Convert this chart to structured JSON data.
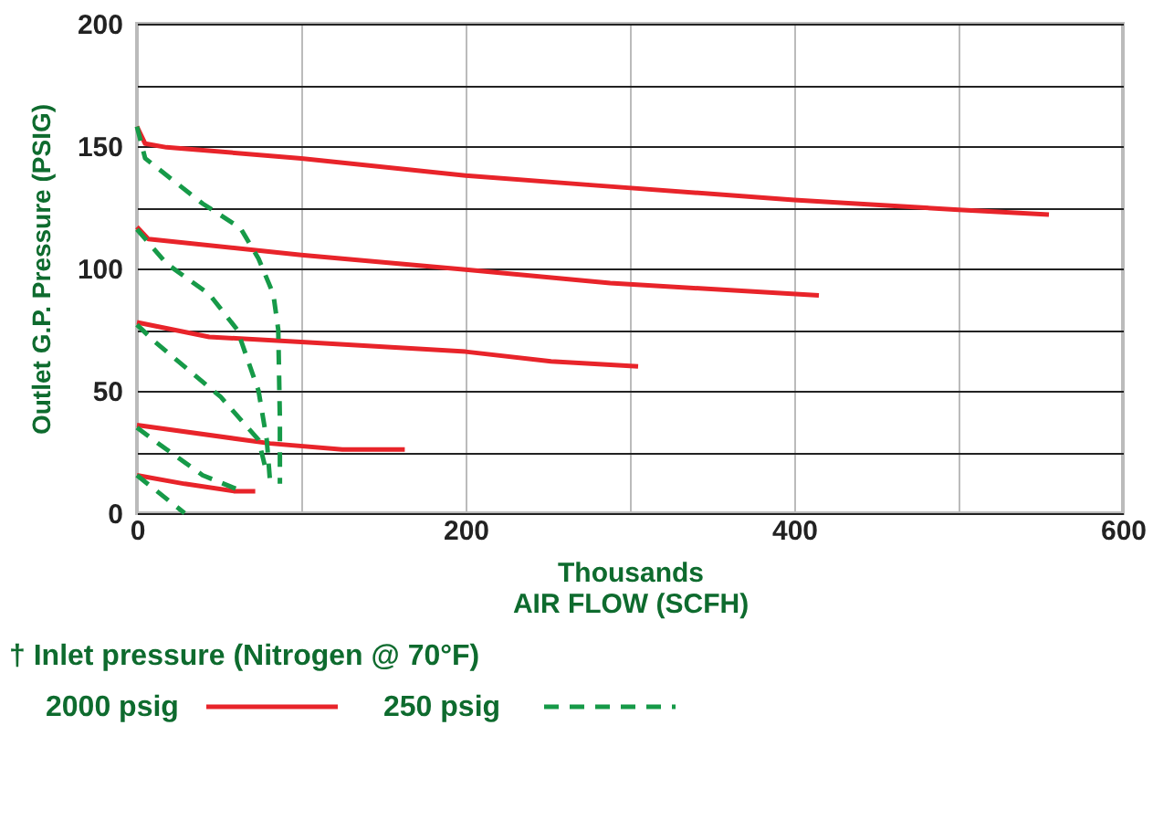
{
  "chart_data": {
    "type": "line",
    "xlabel": "Thousands\nAIR FLOW (SCFH)",
    "ylabel": "Outlet G.P. Pressure (PSIG)",
    "legend_title": "† Inlet pressure (Nitrogen @ 70°F)",
    "xlim": [
      0,
      600
    ],
    "ylim": [
      0,
      200
    ],
    "xticks": [
      0,
      {
        "value": 100,
        "label": null
      },
      200,
      {
        "value": 300,
        "label": null
      },
      400,
      {
        "value": 500,
        "label": null
      },
      600
    ],
    "yticks": [
      0,
      {
        "value": 25,
        "label": null
      },
      50,
      {
        "value": 75,
        "label": null
      },
      100,
      {
        "value": 125,
        "label": null
      },
      150,
      {
        "value": 175,
        "label": null
      },
      200
    ],
    "grid": true,
    "legend": "bottom",
    "marker": "none",
    "series": [
      {
        "name": "2000 psig",
        "color": "#e8242a",
        "line_style": "solid",
        "x": [
          0,
          5,
          18,
          100,
          200,
          278,
          400,
          500,
          555
        ],
        "values": [
          158,
          151,
          149.5,
          145,
          138,
          134,
          128,
          124,
          122
        ]
      },
      {
        "color": "#e8242a",
        "line_style": "solid",
        "x": [
          0,
          7,
          100,
          200,
          288,
          415
        ],
        "values": [
          117,
          112,
          105.5,
          99.5,
          94,
          89
        ]
      },
      {
        "color": "#e8242a",
        "line_style": "solid",
        "x": [
          0,
          44,
          100,
          200,
          252,
          305
        ],
        "values": [
          78,
          72,
          70,
          66,
          62,
          60
        ]
      },
      {
        "color": "#e8242a",
        "line_style": "solid",
        "x": [
          0,
          81,
          125,
          163
        ],
        "values": [
          36,
          28.5,
          26,
          26
        ]
      },
      {
        "color": "#e8242a",
        "line_style": "solid",
        "x": [
          0,
          29,
          59,
          72
        ],
        "values": [
          15.5,
          12,
          9,
          9
        ]
      },
      {
        "name": "250 psig",
        "color": "#169a48",
        "line_style": "dashed",
        "x": [
          0,
          5,
          40,
          63,
          74,
          83,
          86,
          87,
          87
        ],
        "values": [
          158,
          145,
          126.5,
          116.5,
          104,
          89.5,
          75,
          38,
          12
        ]
      },
      {
        "color": "#169a48",
        "line_style": "dashed",
        "x": [
          0,
          18,
          44,
          61,
          74,
          79,
          81
        ],
        "values": [
          116,
          102,
          89.5,
          75,
          50,
          30,
          13
        ]
      },
      {
        "color": "#169a48",
        "line_style": "dashed",
        "x": [
          0,
          11,
          51,
          74,
          78
        ],
        "values": [
          77,
          70,
          47.5,
          30,
          19
        ]
      },
      {
        "color": "#169a48",
        "line_style": "dashed",
        "x": [
          0,
          14,
          40,
          62
        ],
        "values": [
          35,
          28,
          15.5,
          9.5
        ]
      },
      {
        "color": "#169a48",
        "line_style": "dashed",
        "x": [
          0,
          29
        ],
        "values": [
          15.5,
          0
        ]
      }
    ]
  }
}
